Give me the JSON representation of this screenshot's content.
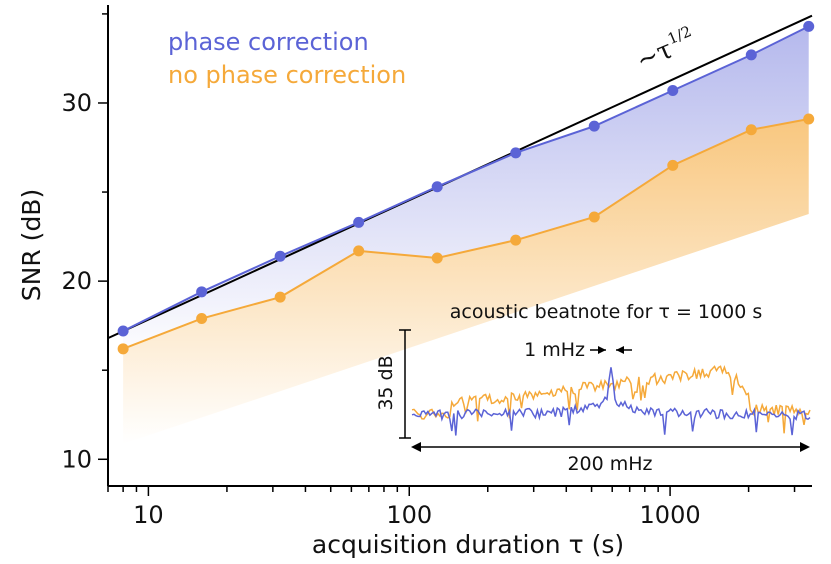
{
  "chart_data": {
    "type": "line",
    "xscale": "log",
    "xlabel": "acquisition duration τ (s)",
    "ylabel": "SNR (dB)",
    "xlim": [
      7,
      3500
    ],
    "ylim": [
      8.5,
      35.5
    ],
    "xticks": [
      10,
      100,
      1000
    ],
    "xtick_labels": [
      "10",
      "100",
      "1000"
    ],
    "yticks": [
      10,
      20,
      30
    ],
    "ytick_labels": [
      "10",
      "20",
      "30"
    ],
    "legend_position": "top-left",
    "series": [
      {
        "name": "phase correction",
        "color": "#5b63d6",
        "x": [
          8,
          16,
          32,
          64,
          128,
          256,
          512,
          1024,
          2048,
          3400
        ],
        "y": [
          17.2,
          19.4,
          21.4,
          23.3,
          25.3,
          27.2,
          28.7,
          30.7,
          32.7,
          34.3
        ]
      },
      {
        "name": "no phase correction",
        "color": "#f5a93a",
        "x": [
          8,
          16,
          32,
          64,
          128,
          256,
          512,
          1024,
          2048,
          3400
        ],
        "y": [
          16.2,
          17.9,
          19.1,
          21.7,
          21.3,
          22.3,
          23.6,
          26.5,
          28.5,
          29.1
        ]
      }
    ],
    "reference_line": {
      "label": "~τ",
      "label_superscript": "1/2",
      "color": "#000000",
      "x": [
        7,
        3500
      ],
      "y": [
        16.8,
        34.9
      ]
    },
    "inset": {
      "title": "acoustic beatnote for τ = 1000 s",
      "y_span_label": "35 dB",
      "x_span_label": "200 mHz",
      "linewidth_label": "1 mHz"
    }
  }
}
